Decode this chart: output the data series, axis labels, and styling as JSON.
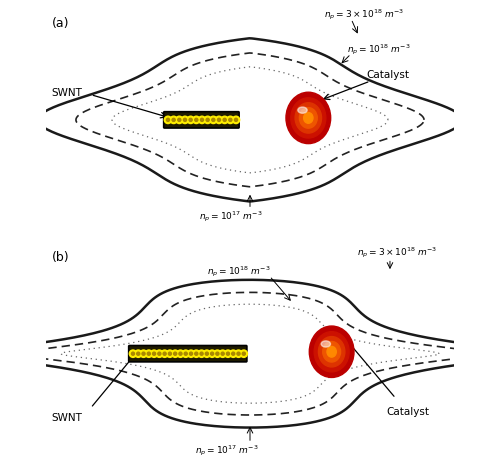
{
  "fig_width": 5.0,
  "fig_height": 4.72,
  "dpi": 100,
  "background_color": "#ffffff",
  "panel_a_label": "(a)",
  "panel_b_label": "(b)",
  "swnt_label": "SWNT",
  "catalyst_label": "Catalyst",
  "n1_label": "$n_p = 3\\times10^{18}\\ m^{-3}$",
  "n2_label": "$n_p = 10^{18}\\ m^{-3}$",
  "n3_label": "$n_p = 10^{17}\\ m^{-3}$",
  "nanotube_outer_color": "#1e1a00",
  "nanotube_inner_color": "#ffee00",
  "nanotube_dot_center": "#aa8800",
  "catalyst_colors": [
    "#bb0000",
    "#cc1100",
    "#dd3300",
    "#ee5500",
    "#ff8800"
  ],
  "catalyst_radii": [
    0.115,
    0.09,
    0.068,
    0.046,
    0.024
  ],
  "contour_solid_color": "#1a1a1a",
  "contour_dashed_color": "#222222",
  "contour_dotted_color": "#666666",
  "arrow_color": "black",
  "text_color": "black"
}
